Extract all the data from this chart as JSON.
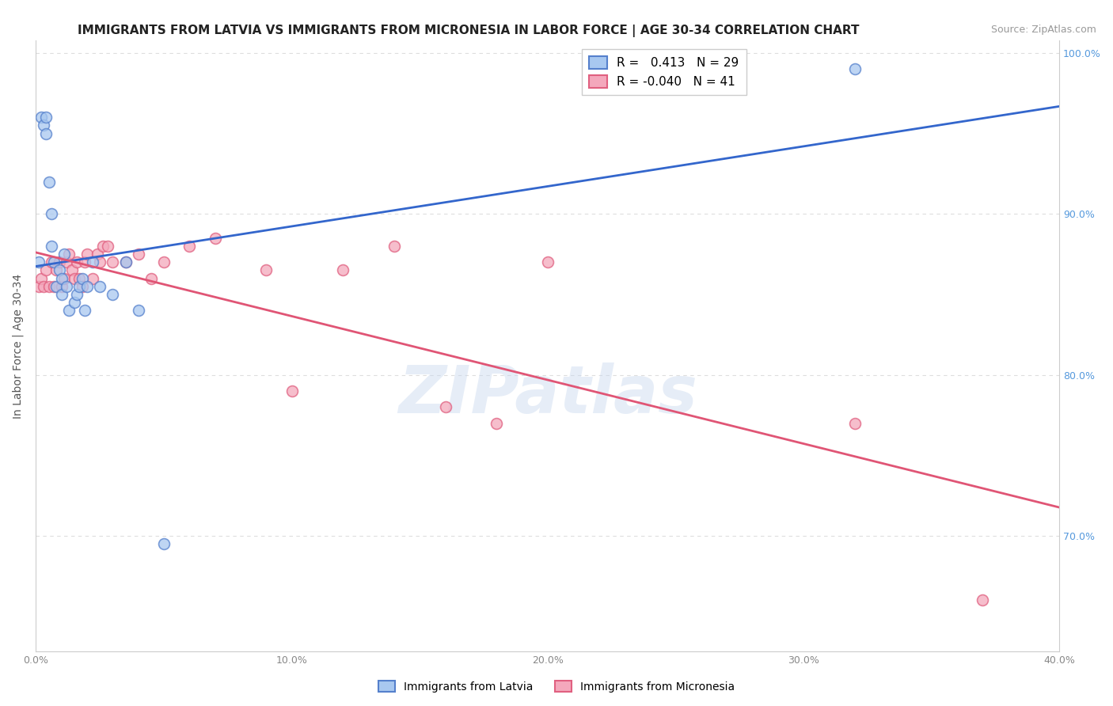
{
  "title": "IMMIGRANTS FROM LATVIA VS IMMIGRANTS FROM MICRONESIA IN LABOR FORCE | AGE 30-34 CORRELATION CHART",
  "source": "Source: ZipAtlas.com",
  "ylabel": "In Labor Force | Age 30-34",
  "xlabel": "",
  "xlim": [
    0.0,
    0.4
  ],
  "ylim": [
    0.628,
    1.008
  ],
  "xticks": [
    0.0,
    0.1,
    0.2,
    0.3,
    0.4
  ],
  "xticklabels": [
    "0.0%",
    "10.0%",
    "20.0%",
    "30.0%",
    "40.0%"
  ],
  "yticks": [
    0.7,
    0.8,
    0.9,
    1.0
  ],
  "yticklabels": [
    "70.0%",
    "80.0%",
    "90.0%",
    "100.0%"
  ],
  "legend_R_latvia": "0.413",
  "legend_N_latvia": "29",
  "legend_R_micronesia": "-0.040",
  "legend_N_micronesia": "41",
  "blue_color": "#A8C8F0",
  "pink_color": "#F4A8BC",
  "blue_edge_color": "#5580CC",
  "pink_edge_color": "#E06080",
  "blue_line_color": "#3366CC",
  "pink_line_color": "#E05575",
  "background_color": "#FFFFFF",
  "grid_color": "#DDDDDD",
  "latvia_x": [
    0.001,
    0.002,
    0.003,
    0.004,
    0.004,
    0.005,
    0.006,
    0.006,
    0.007,
    0.008,
    0.009,
    0.01,
    0.01,
    0.011,
    0.012,
    0.013,
    0.015,
    0.016,
    0.017,
    0.018,
    0.019,
    0.02,
    0.022,
    0.025,
    0.03,
    0.035,
    0.04,
    0.05,
    0.32
  ],
  "latvia_y": [
    0.87,
    0.96,
    0.955,
    0.95,
    0.96,
    0.92,
    0.88,
    0.9,
    0.87,
    0.855,
    0.865,
    0.86,
    0.85,
    0.875,
    0.855,
    0.84,
    0.845,
    0.85,
    0.855,
    0.86,
    0.84,
    0.855,
    0.87,
    0.855,
    0.85,
    0.87,
    0.84,
    0.695,
    0.99
  ],
  "micronesia_x": [
    0.001,
    0.002,
    0.003,
    0.004,
    0.005,
    0.006,
    0.007,
    0.008,
    0.009,
    0.01,
    0.011,
    0.012,
    0.013,
    0.014,
    0.015,
    0.016,
    0.017,
    0.018,
    0.019,
    0.02,
    0.022,
    0.024,
    0.025,
    0.026,
    0.028,
    0.03,
    0.035,
    0.04,
    0.045,
    0.05,
    0.06,
    0.07,
    0.09,
    0.1,
    0.12,
    0.14,
    0.16,
    0.18,
    0.2,
    0.32,
    0.37
  ],
  "micronesia_y": [
    0.855,
    0.86,
    0.855,
    0.865,
    0.855,
    0.87,
    0.855,
    0.865,
    0.87,
    0.855,
    0.86,
    0.87,
    0.875,
    0.865,
    0.86,
    0.87,
    0.86,
    0.855,
    0.87,
    0.875,
    0.86,
    0.875,
    0.87,
    0.88,
    0.88,
    0.87,
    0.87,
    0.875,
    0.86,
    0.87,
    0.88,
    0.885,
    0.865,
    0.79,
    0.865,
    0.88,
    0.78,
    0.77,
    0.87,
    0.77,
    0.66
  ],
  "marker_size": 100,
  "marker_linewidth": 1.2,
  "title_fontsize": 11,
  "axis_fontsize": 10,
  "tick_fontsize": 9,
  "watermark_text": "ZIPatlas",
  "watermark_color": "#C8D8EE",
  "watermark_alpha": 0.45,
  "trend_line_x_start_lv": 0.0,
  "trend_line_x_end_lv": 0.4,
  "trend_line_x_start_mc": 0.0,
  "trend_line_x_end_mc": 0.4
}
